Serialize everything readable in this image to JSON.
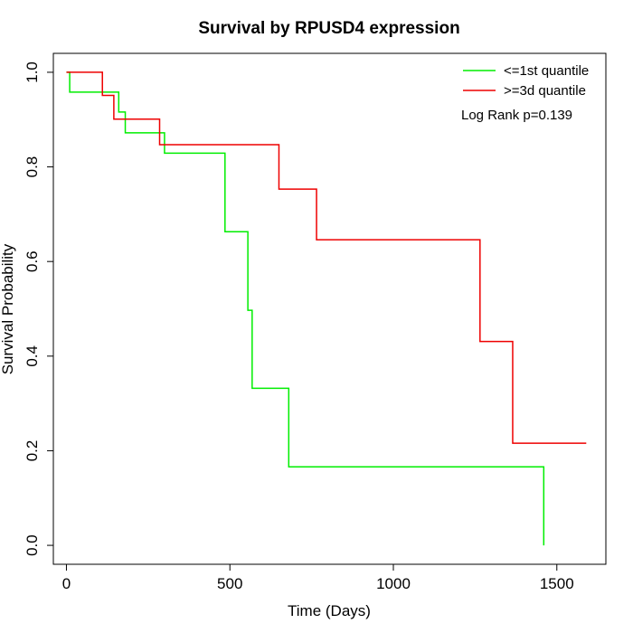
{
  "chart_data": {
    "type": "line",
    "title": "Survival by RPUSD4 expression",
    "xlabel": "Time (Days)",
    "ylabel": "Survival Probability",
    "xlim": [
      -40,
      1650
    ],
    "ylim": [
      -0.04,
      1.04
    ],
    "xticks": [
      0,
      500,
      1000,
      1500
    ],
    "yticks": [
      0.0,
      0.2,
      0.4,
      0.6,
      0.8,
      1.0
    ],
    "xtick_labels": [
      "0",
      "500",
      "1000",
      "1500"
    ],
    "ytick_labels": [
      "0.0",
      "0.2",
      "0.4",
      "0.6",
      "0.8",
      "1.0"
    ],
    "grid": false,
    "legend_position": "top-right",
    "annotation": "Log Rank p=0.139",
    "series": [
      {
        "name": "<=1st quantile",
        "color": "#00ee00",
        "step": true,
        "x": [
          0,
          10,
          160,
          180,
          300,
          485,
          555,
          568,
          680,
          1460,
          1460
        ],
        "y": [
          1.0,
          0.958,
          0.916,
          0.872,
          0.829,
          0.663,
          0.497,
          0.332,
          0.166,
          0.166,
          0.0
        ]
      },
      {
        "name": ">=3d quantile",
        "color": "#ee0000",
        "step": true,
        "x": [
          0,
          110,
          145,
          285,
          650,
          765,
          1265,
          1365,
          1590
        ],
        "y": [
          1.0,
          0.951,
          0.901,
          0.847,
          0.753,
          0.646,
          0.431,
          0.216,
          0.216
        ]
      }
    ]
  }
}
